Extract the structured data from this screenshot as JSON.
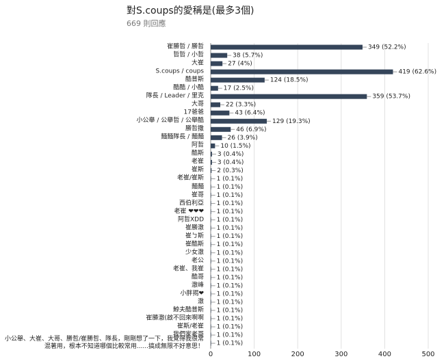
{
  "chart_data": {
    "type": "bar",
    "orientation": "horizontal",
    "title": "對S.coups的愛稱是(最多3個)",
    "subtitle": "669 則回應",
    "color": "#35455a",
    "categories": [
      "崔勝哲 / 勝哲",
      "哲哲 / 小哲",
      "大崔",
      "S.coups / coups",
      "酷普斯",
      "酷酷 / 小酷",
      "隊長 / Leader / 里克",
      "大哥",
      "17爸爸",
      "小公舉 / 公舉哲 / 公舉酷",
      "勝哲撒",
      "麵麵隊長 / 麵麵",
      "阿哲",
      "酷斯",
      "老崔",
      "崔斯",
      "老崔/崔斯",
      "麵麵",
      "崔哥",
      "西伯利亞",
      "老崔 ❤❤❤",
      "阿哲XDD",
      "崔勝澈",
      "崔ㄅ斯",
      "崔酷斯",
      "少女澈",
      "老公",
      "老崔、我崔",
      "酷哥",
      "澈峰",
      "小胖揭❤",
      "澈",
      "鯨夫酷普斯",
      "崔勝澈(啟不回來啊啊",
      "崔斯/老崔",
      "我們家老哥",
      "小公舉、大崔、大哥、勝哲/崔勝哲、隊長，剛剛想了一下，我覺得我很常混著用，根本不知道哪個比較常用......搞成無限不好意思！"
    ],
    "values": [
      349,
      38,
      27,
      419,
      124,
      17,
      359,
      22,
      43,
      129,
      46,
      26,
      10,
      3,
      3,
      2,
      1,
      1,
      1,
      1,
      1,
      1,
      1,
      1,
      1,
      1,
      1,
      1,
      1,
      1,
      1,
      1,
      1,
      1,
      1,
      1,
      1
    ],
    "value_labels": [
      "349 (52.2%)",
      "38 (5.7%)",
      "27 (4%)",
      "419 (62.6%)",
      "124 (18.5%)",
      "17 (2.5%)",
      "359 (53.7%)",
      "22 (3.3%)",
      "43 (6.4%)",
      "129 (19.3%)",
      "46 (6.9%)",
      "26 (3.9%)",
      "10 (1.5%)",
      "3 (0.4%)",
      "3 (0.4%)",
      "2 (0.3%)",
      "1 (0.1%)",
      "1 (0.1%)",
      "1 (0.1%)",
      "1 (0.1%)",
      "1 (0.1%)",
      "1 (0.1%)",
      "1 (0.1%)",
      "1 (0.1%)",
      "1 (0.1%)",
      "1 (0.1%)",
      "1 (0.1%)",
      "1 (0.1%)",
      "1 (0.1%)",
      "1 (0.1%)",
      "1 (0.1%)",
      "1 (0.1%)",
      "1 (0.1%)",
      "1 (0.1%)",
      "1 (0.1%)",
      "1 (0.1%)",
      "1 (0.1%)"
    ],
    "xlim": [
      0,
      500
    ],
    "xticks": [
      0,
      100,
      200,
      300,
      400,
      500
    ],
    "grid": true
  }
}
